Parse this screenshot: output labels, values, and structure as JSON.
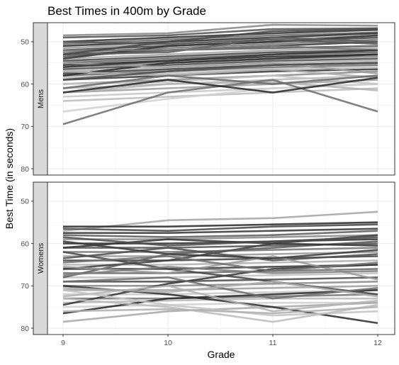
{
  "chart_data": {
    "type": "line",
    "title": "Best Times in 400m by Grade",
    "xlabel": "Grade",
    "ylabel": "Best Time (in seconds)",
    "x": [
      9,
      10,
      11,
      12
    ],
    "x_tick_labels": [
      "9",
      "10",
      "11",
      "12"
    ],
    "y_tick_labels": [
      "50",
      "60",
      "70",
      "80"
    ],
    "ylim": [
      45.5,
      81.5
    ],
    "y_reversed": true,
    "grid": true,
    "legend": "none",
    "panels": [
      {
        "label": "Mens",
        "series": [
          {
            "values": [
              48.5,
              48.0,
              46.0,
              46.2
            ],
            "gray": "#8a8a8a"
          },
          {
            "values": [
              49.0,
              48.5,
              47.0,
              46.8
            ],
            "gray": "#555555"
          },
          {
            "values": [
              50.0,
              49.0,
              48.0,
              47.2
            ],
            "gray": "#333333"
          },
          {
            "values": [
              50.5,
              49.5,
              48.5,
              47.8
            ],
            "gray": "#6e6e6e"
          },
          {
            "values": [
              51.0,
              50.0,
              49.0,
              48.0
            ],
            "gray": "#2e2e2e"
          },
          {
            "values": [
              51.5,
              50.5,
              49.5,
              48.5
            ],
            "gray": "#9a9a9a"
          },
          {
            "values": [
              52.0,
              51.0,
              50.0,
              49.0
            ],
            "gray": "#444444"
          },
          {
            "values": [
              52.5,
              51.5,
              50.5,
              49.5
            ],
            "gray": "#7a7a7a"
          },
          {
            "values": [
              53.0,
              52.0,
              51.0,
              50.0
            ],
            "gray": "#3a3a3a"
          },
          {
            "values": [
              53.5,
              52.0,
              51.5,
              51.0
            ],
            "gray": "#5a5a5a"
          },
          {
            "values": [
              54.0,
              53.0,
              52.0,
              51.5
            ],
            "gray": "#a8a8a8"
          },
          {
            "values": [
              54.5,
              53.5,
              52.5,
              52.0
            ],
            "gray": "#4a4a4a"
          },
          {
            "values": [
              55.0,
              54.0,
              53.0,
              52.5
            ],
            "gray": "#666666"
          },
          {
            "values": [
              55.5,
              54.5,
              53.5,
              53.0
            ],
            "gray": "#2a2a2a"
          },
          {
            "values": [
              56.0,
              55.0,
              54.0,
              53.5
            ],
            "gray": "#888888"
          },
          {
            "values": [
              56.5,
              55.5,
              54.5,
              54.0
            ],
            "gray": "#505050"
          },
          {
            "values": [
              57.0,
              56.0,
              55.0,
              54.5
            ],
            "gray": "#b0b0b0"
          },
          {
            "values": [
              57.5,
              56.5,
              55.5,
              55.0
            ],
            "gray": "#404040"
          },
          {
            "values": [
              58.0,
              57.0,
              56.0,
              55.5
            ],
            "gray": "#707070"
          },
          {
            "values": [
              58.5,
              57.5,
              56.5,
              56.0
            ],
            "gray": "#c0c0c0"
          },
          {
            "values": [
              59.0,
              58.0,
              57.0,
              56.5
            ],
            "gray": "#3c3c3c"
          },
          {
            "values": [
              60.0,
              59.0,
              58.0,
              57.0
            ],
            "gray": "#909090"
          },
          {
            "values": [
              61.0,
              60.0,
              59.0,
              58.0
            ],
            "gray": "#b8b8b8"
          },
          {
            "values": [
              62.0,
              61.0,
              60.0,
              59.0
            ],
            "gray": "#a0a0a0"
          },
          {
            "values": [
              63.0,
              62.0,
              61.0,
              60.0
            ],
            "gray": "#c8c8c8"
          },
          {
            "values": [
              64.0,
              63.0,
              62.0,
              61.0
            ],
            "gray": "#bdbdbd"
          },
          {
            "values": [
              66.5,
              63.5,
              61.0,
              60.0
            ],
            "gray": "#d0d0d0"
          },
          {
            "values": [
              54.0,
              51.0,
              50.0,
              48.5
            ],
            "gray": "#363636"
          },
          {
            "values": [
              53.0,
              52.5,
              49.0,
              50.0
            ],
            "gray": "#5e5e5e"
          },
          {
            "values": [
              58.0,
              55.0,
              54.0,
              53.0
            ],
            "gray": "#2f2f2f"
          },
          {
            "values": [
              52.0,
              52.0,
              51.0,
              52.0
            ],
            "gray": "#787878"
          },
          {
            "values": [
              55.0,
              56.0,
              55.0,
              57.5
            ],
            "gray": "#9e9e9e"
          },
          {
            "values": [
              57.0,
              58.0,
              56.5,
              58.5
            ],
            "gray": "#adadad"
          },
          {
            "values": [
              60.0,
              59.5,
              58.0,
              60.0
            ],
            "gray": "#c4c4c4"
          },
          {
            "values": [
              62.0,
              60.0,
              59.5,
              61.5
            ],
            "gray": "#b4b4b4"
          },
          {
            "values": [
              61.0,
              58.0,
              60.0,
              58.0
            ],
            "gray": "#6a6a6a"
          },
          {
            "values": [
              69.5,
              62.0,
              59.0,
              66.5
            ],
            "gray": "#707070"
          },
          {
            "values": [
              62.0,
              59.0,
              62.0,
              58.5
            ],
            "gray": "#2a2a2a"
          },
          {
            "values": [
              53.0,
              50.0,
              47.5,
              47.0
            ],
            "gray": "#484848"
          },
          {
            "values": [
              56.0,
              54.5,
              53.0,
              52.0
            ],
            "gray": "#383838"
          },
          {
            "values": [
              50.0,
              50.5,
              49.5,
              50.5
            ],
            "gray": "#5a5a5a"
          },
          {
            "values": [
              59.0,
              57.0,
              55.5,
              55.0
            ],
            "gray": "#4e4e4e"
          }
        ]
      },
      {
        "label": "Womens",
        "series": [
          {
            "values": [
              57.0,
              54.5,
              54.0,
              52.5
            ],
            "gray": "#a6a6a6"
          },
          {
            "values": [
              56.0,
              56.0,
              55.5,
              55.0
            ],
            "gray": "#2e2e2e"
          },
          {
            "values": [
              56.5,
              57.0,
              56.0,
              55.5
            ],
            "gray": "#4a4a4a"
          },
          {
            "values": [
              57.5,
              57.5,
              57.0,
              56.5
            ],
            "gray": "#3a3a3a"
          },
          {
            "values": [
              58.0,
              58.5,
              58.0,
              57.0
            ],
            "gray": "#606060"
          },
          {
            "values": [
              59.0,
              59.0,
              58.5,
              58.0
            ],
            "gray": "#8a8a8a"
          },
          {
            "values": [
              60.0,
              60.0,
              59.5,
              59.0
            ],
            "gray": "#333333"
          },
          {
            "values": [
              61.0,
              61.0,
              60.5,
              60.0
            ],
            "gray": "#555555"
          },
          {
            "values": [
              62.0,
              62.0,
              61.5,
              61.0
            ],
            "gray": "#777777"
          },
          {
            "values": [
              63.0,
              63.0,
              62.5,
              62.0
            ],
            "gray": "#999999"
          },
          {
            "values": [
              64.0,
              64.0,
              63.5,
              63.0
            ],
            "gray": "#444444"
          },
          {
            "values": [
              65.0,
              65.0,
              64.5,
              64.0
            ],
            "gray": "#b0b0b0"
          },
          {
            "values": [
              66.0,
              66.0,
              65.5,
              65.0
            ],
            "gray": "#3e3e3e"
          },
          {
            "values": [
              67.0,
              67.0,
              66.5,
              66.0
            ],
            "gray": "#6a6a6a"
          },
          {
            "values": [
              68.0,
              68.0,
              67.5,
              67.0
            ],
            "gray": "#c0c0c0"
          },
          {
            "values": [
              69.0,
              69.0,
              68.5,
              68.0
            ],
            "gray": "#505050"
          },
          {
            "values": [
              70.0,
              70.0,
              69.5,
              69.0
            ],
            "gray": "#8c8c8c"
          },
          {
            "values": [
              71.0,
              71.0,
              70.5,
              70.0
            ],
            "gray": "#a0a0a0"
          },
          {
            "values": [
              72.0,
              72.0,
              71.5,
              71.0
            ],
            "gray": "#c8c8c8"
          },
          {
            "values": [
              73.0,
              73.0,
              72.5,
              72.0
            ],
            "gray": "#7a7a7a"
          },
          {
            "values": [
              74.0,
              73.5,
              73.0,
              73.0
            ],
            "gray": "#b8b8b8"
          },
          {
            "values": [
              75.0,
              74.5,
              74.0,
              74.0
            ],
            "gray": "#d0d0d0"
          },
          {
            "values": [
              76.5,
              73.0,
              72.0,
              71.0
            ],
            "gray": "#2a2a2a"
          },
          {
            "values": [
              74.5,
              69.5,
              66.0,
              65.0
            ],
            "gray": "#383838"
          },
          {
            "values": [
              78.5,
              76.0,
              75.0,
              74.0
            ],
            "gray": "#a8a8a8"
          },
          {
            "values": [
              70.0,
              72.0,
              75.0,
              78.8
            ],
            "gray": "#2f2f2f"
          },
          {
            "values": [
              62.0,
              66.0,
              69.0,
              72.0
            ],
            "gray": "#484848"
          },
          {
            "values": [
              66.0,
              64.0,
              60.0,
              58.0
            ],
            "gray": "#404040"
          },
          {
            "values": [
              68.0,
              62.5,
              61.0,
              59.5
            ],
            "gray": "#5c5c5c"
          },
          {
            "values": [
              72.5,
              70.0,
              76.0,
              73.5
            ],
            "gray": "#b4b4b4"
          },
          {
            "values": [
              73.0,
              75.0,
              78.5,
              74.5
            ],
            "gray": "#bcbcbc"
          },
          {
            "values": [
              71.0,
              74.5,
              77.0,
              76.0
            ],
            "gray": "#c4c4c4"
          },
          {
            "values": [
              69.0,
              68.0,
              73.0,
              70.5
            ],
            "gray": "#6e6e6e"
          },
          {
            "values": [
              63.5,
              61.0,
              64.0,
              62.5
            ],
            "gray": "#525252"
          },
          {
            "values": [
              65.5,
              67.0,
              63.0,
              68.5
            ],
            "gray": "#9a9a9a"
          },
          {
            "values": [
              61.0,
              59.0,
              60.0,
              60.5
            ],
            "gray": "#363636"
          },
          {
            "values": [
              67.5,
              65.5,
              67.0,
              66.5
            ],
            "gray": "#808080"
          },
          {
            "values": [
              70.5,
              71.5,
              69.0,
              72.5
            ],
            "gray": "#adadad"
          },
          {
            "values": [
              58.5,
              60.5,
              59.5,
              58.5
            ],
            "gray": "#4e4e4e"
          },
          {
            "values": [
              64.5,
              63.0,
              66.5,
              64.5
            ],
            "gray": "#727272"
          },
          {
            "values": [
              76.0,
              75.5,
              76.5,
              75.0
            ],
            "gray": "#b0b0b0"
          },
          {
            "values": [
              59.5,
              62.5,
              63.5,
              61.5
            ],
            "gray": "#3c3c3c"
          }
        ]
      }
    ]
  }
}
